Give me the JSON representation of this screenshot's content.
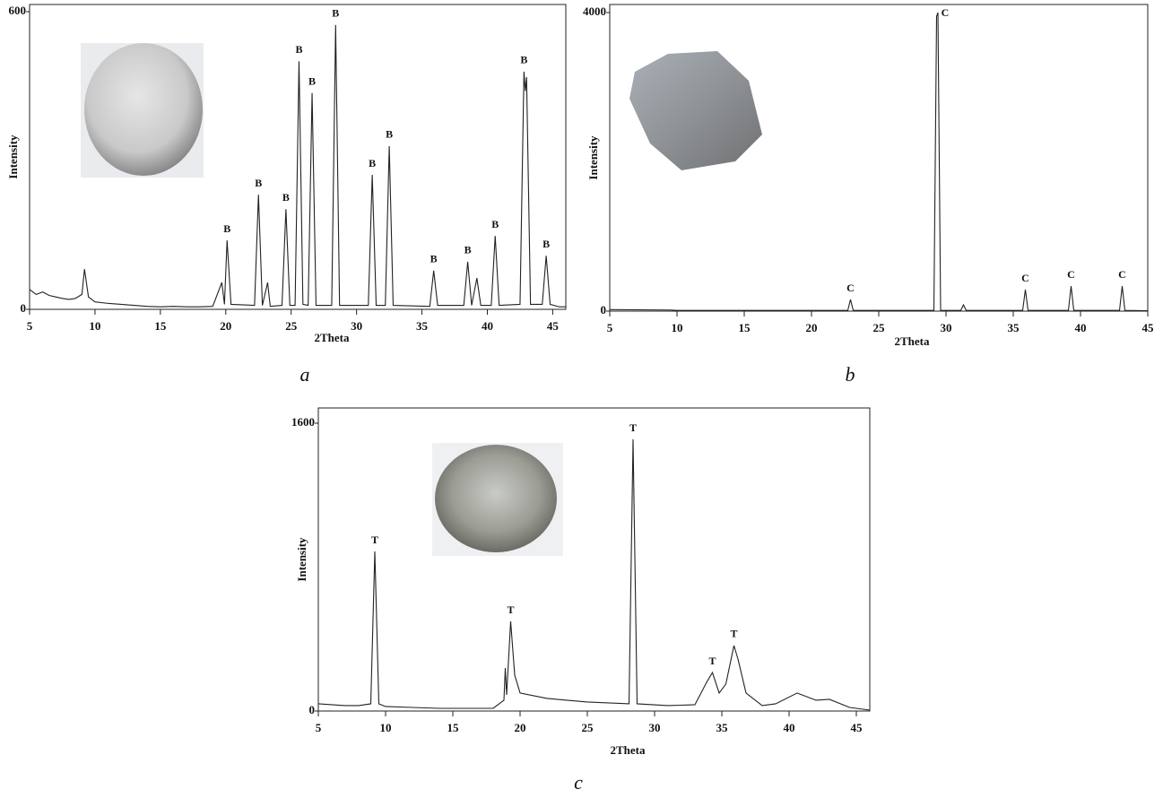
{
  "chart_data": [
    {
      "type": "line",
      "caption": "a",
      "xlabel": "2Theta",
      "ylabel": "Intensity",
      "xlim": [
        5,
        46
      ],
      "ylim": [
        0,
        600
      ],
      "xticks": [
        5,
        10,
        15,
        20,
        25,
        30,
        35,
        40,
        45
      ],
      "yticks": [
        0,
        600
      ],
      "color": "#222222",
      "x": [
        5,
        5.5,
        6,
        6.5,
        7,
        7.5,
        8,
        8.5,
        9,
        9.2,
        9.5,
        10,
        11,
        12,
        13,
        14,
        15,
        16,
        17,
        18,
        19,
        19.7,
        19.9,
        20.1,
        20.4,
        22.2,
        22.5,
        22.8,
        23.2,
        23.4,
        24.3,
        24.6,
        24.9,
        25.3,
        25.6,
        25.9,
        26.3,
        26.6,
        26.9,
        28.1,
        28.4,
        28.7,
        30.9,
        31.2,
        31.5,
        32.2,
        32.5,
        32.8,
        35.6,
        35.9,
        36.2,
        38.2,
        38.5,
        38.8,
        39.2,
        39.5,
        40.3,
        40.6,
        40.9,
        42.5,
        42.8,
        42.9,
        43.0,
        43.3,
        44.2,
        44.5,
        44.8,
        45.5,
        46
      ],
      "values": [
        40,
        30,
        35,
        28,
        25,
        22,
        20,
        22,
        30,
        81,
        25,
        15,
        12,
        10,
        8,
        6,
        5,
        6,
        5,
        5,
        6,
        54,
        10,
        139,
        10,
        8,
        231,
        8,
        54,
        6,
        8,
        202,
        8,
        8,
        500,
        10,
        8,
        436,
        8,
        8,
        573,
        8,
        8,
        271,
        8,
        8,
        329,
        8,
        6,
        78,
        8,
        8,
        96,
        8,
        63,
        8,
        8,
        148,
        8,
        10,
        479,
        440,
        468,
        10,
        10,
        108,
        10,
        5,
        5
      ],
      "annotations": [
        {
          "x": 20.1,
          "label": "B"
        },
        {
          "x": 22.5,
          "label": "B"
        },
        {
          "x": 24.6,
          "label": "B"
        },
        {
          "x": 25.6,
          "label": "B"
        },
        {
          "x": 26.6,
          "label": "B"
        },
        {
          "x": 28.4,
          "label": "B"
        },
        {
          "x": 31.2,
          "label": "B"
        },
        {
          "x": 32.5,
          "label": "B"
        },
        {
          "x": 35.9,
          "label": "B"
        },
        {
          "x": 38.5,
          "label": "B"
        },
        {
          "x": 40.6,
          "label": "B"
        },
        {
          "x": 42.8,
          "label": "B"
        },
        {
          "x": 44.5,
          "label": "B"
        }
      ]
    },
    {
      "type": "line",
      "caption": "b",
      "xlabel": "2Theta",
      "ylabel": "Intensity",
      "xlim": [
        5,
        45
      ],
      "ylim": [
        0,
        4000
      ],
      "xticks": [
        5,
        10,
        15,
        20,
        25,
        30,
        35,
        40,
        45
      ],
      "yticks": [
        0,
        4000
      ],
      "color": "#222222",
      "x": [
        5,
        9.5,
        10,
        22.7,
        22.9,
        23.1,
        29.1,
        29.3,
        29.4,
        29.6,
        31.1,
        31.3,
        31.5,
        35.7,
        35.9,
        36.1,
        39.1,
        39.3,
        39.5,
        42.9,
        43.1,
        43.3,
        45
      ],
      "values": [
        20,
        15,
        10,
        10,
        156,
        10,
        10,
        3950,
        4000,
        10,
        10,
        84,
        10,
        10,
        288,
        10,
        10,
        336,
        10,
        10,
        336,
        10,
        5
      ],
      "annotations": [
        {
          "x": 22.9,
          "label": "C"
        },
        {
          "x": 29.4,
          "label": "C"
        },
        {
          "x": 35.9,
          "label": "C"
        },
        {
          "x": 39.3,
          "label": "C"
        },
        {
          "x": 43.1,
          "label": "C"
        }
      ]
    },
    {
      "type": "line",
      "caption": "c",
      "xlabel": "2Theta",
      "ylabel": "Intensity",
      "xlim": [
        5,
        46
      ],
      "ylim": [
        0,
        1600
      ],
      "xticks": [
        5,
        10,
        15,
        20,
        25,
        30,
        35,
        40,
        45
      ],
      "yticks": [
        0,
        1600
      ],
      "color": "#222222",
      "x": [
        5,
        6,
        7,
        8,
        8.9,
        9.2,
        9.5,
        10,
        12,
        14,
        16,
        18,
        18.8,
        18.9,
        19.0,
        19.3,
        19.6,
        20,
        22,
        25,
        28.1,
        28.4,
        28.7,
        31,
        33,
        33.9,
        34.3,
        34.8,
        35.3,
        35.9,
        36.2,
        36.8,
        38,
        39,
        40.6,
        42,
        43,
        44.5,
        46
      ],
      "values": [
        40,
        35,
        30,
        30,
        40,
        887,
        40,
        25,
        20,
        15,
        15,
        15,
        60,
        239,
        90,
        498,
        200,
        100,
        70,
        50,
        40,
        1510,
        40,
        30,
        35,
        164,
        214,
        100,
        150,
        364,
        289,
        100,
        30,
        40,
        100,
        60,
        65,
        20,
        5
      ],
      "annotations": [
        {
          "x": 9.2,
          "label": "T"
        },
        {
          "x": 19.3,
          "label": "T"
        },
        {
          "x": 28.4,
          "label": "T"
        },
        {
          "x": 34.3,
          "label": "T"
        },
        {
          "x": 35.9,
          "label": "T"
        }
      ]
    }
  ]
}
